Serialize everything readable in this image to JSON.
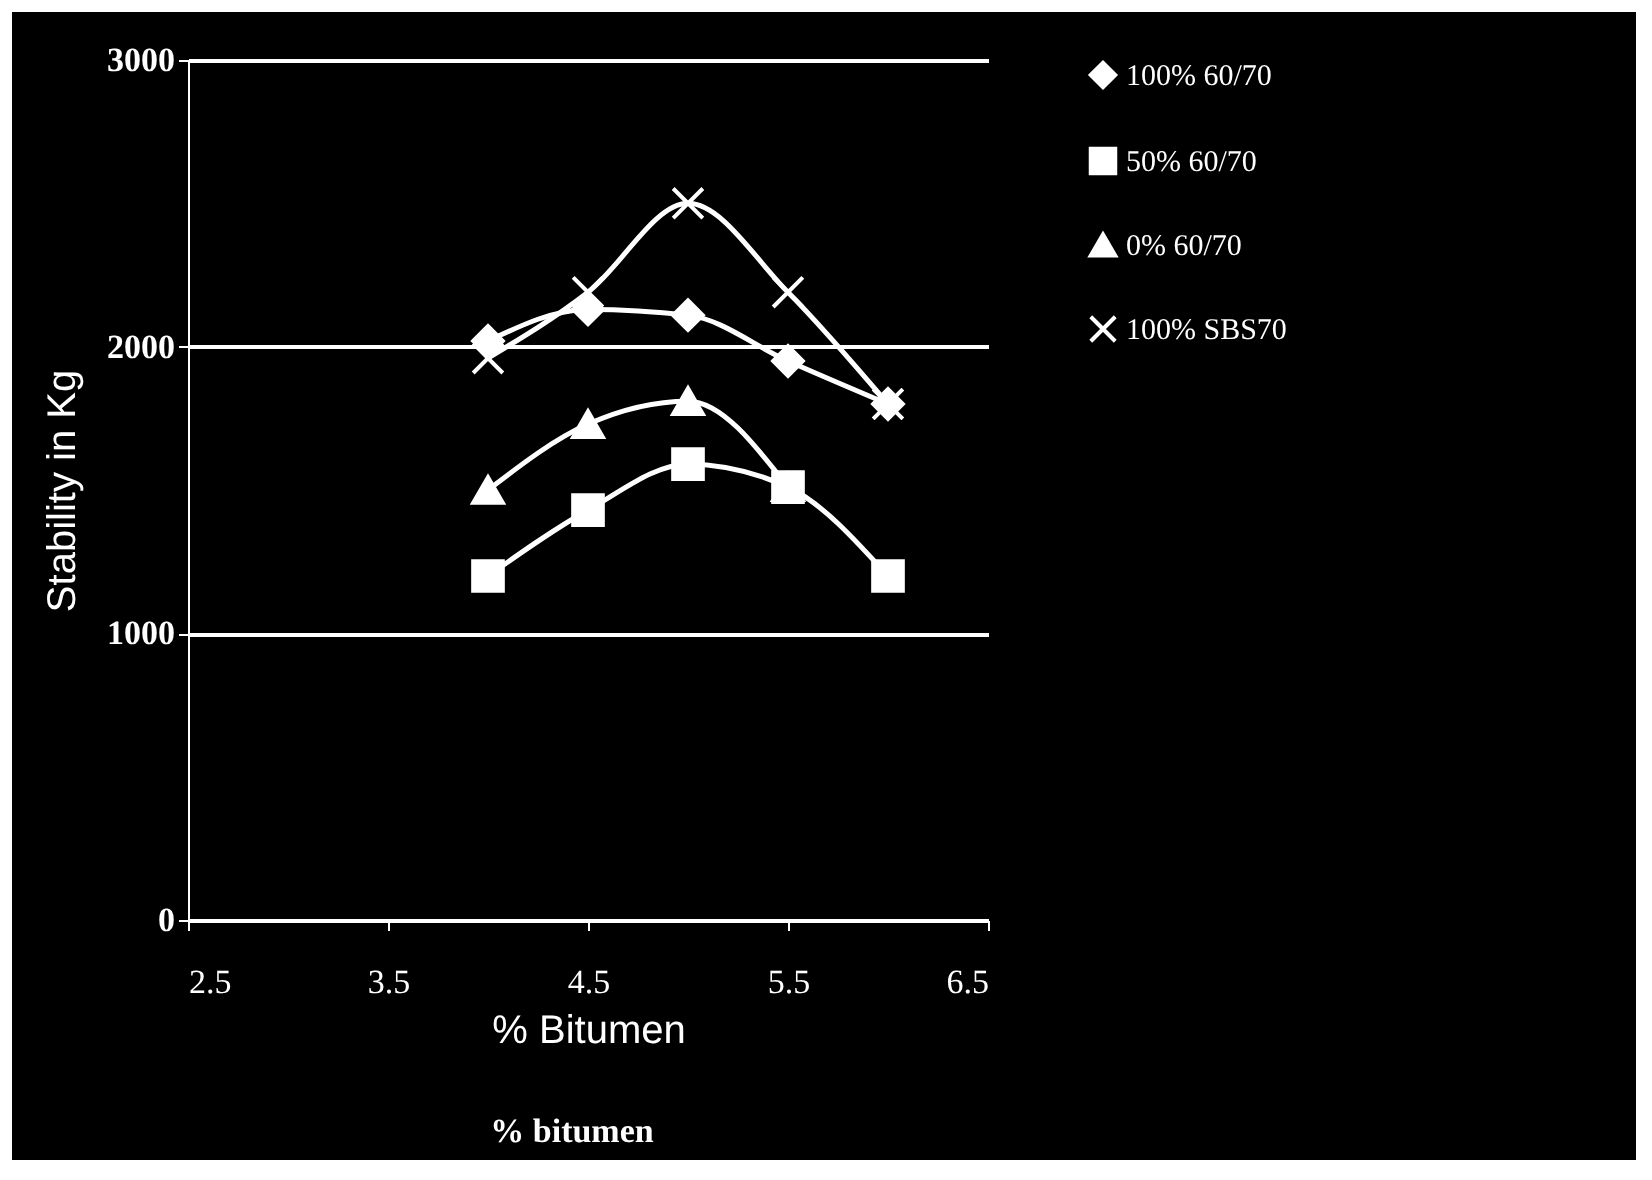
{
  "chart_data": {
    "type": "line",
    "xlabel": "% Bitumen",
    "ylabel": "Stability in Kg",
    "annotations": [
      "% bitumen"
    ],
    "x": [
      4,
      4.5,
      5,
      5.5,
      6
    ],
    "series": [
      {
        "name": "100% 60/70",
        "color": "#ffffff",
        "marker": "diamond",
        "values": [
          2020,
          2130,
          2110,
          1950,
          1800
        ]
      },
      {
        "name": "50% 60/70",
        "color": "#ffffff",
        "marker": "square",
        "values": [
          1200,
          1430,
          1590,
          1510,
          1200
        ]
      },
      {
        "name": "0% 60/70",
        "color": "#ffffff",
        "marker": "triangle",
        "values": [
          1500,
          1730,
          1810,
          1510,
          null
        ]
      },
      {
        "name": "100% SBS70",
        "color": "#ffffff",
        "marker": "cross",
        "values": [
          1960,
          2190,
          2500,
          2190,
          1800
        ]
      }
    ],
    "xlim": [
      2.5,
      6.5
    ],
    "xticks": [
      2.5,
      3.5,
      4.5,
      5.5,
      6.5
    ],
    "ylim": [
      0,
      3000
    ],
    "yticks": [
      0,
      1000,
      2000,
      3000
    ],
    "grid": "y",
    "legend": "right"
  }
}
